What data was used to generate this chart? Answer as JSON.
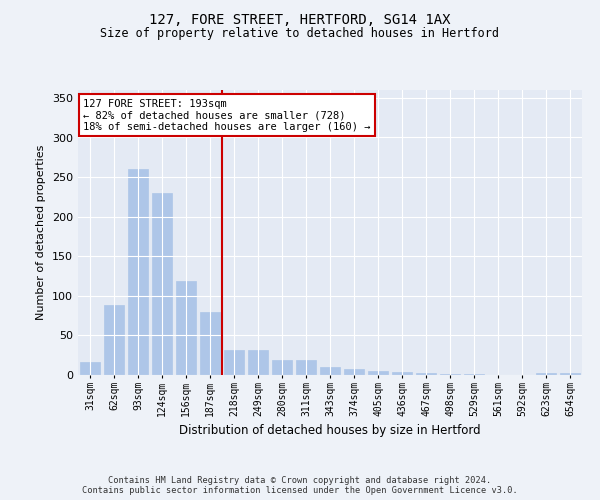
{
  "title": "127, FORE STREET, HERTFORD, SG14 1AX",
  "subtitle": "Size of property relative to detached houses in Hertford",
  "xlabel": "Distribution of detached houses by size in Hertford",
  "ylabel": "Number of detached properties",
  "categories": [
    "31sqm",
    "62sqm",
    "93sqm",
    "124sqm",
    "156sqm",
    "187sqm",
    "218sqm",
    "249sqm",
    "280sqm",
    "311sqm",
    "343sqm",
    "374sqm",
    "405sqm",
    "436sqm",
    "467sqm",
    "498sqm",
    "529sqm",
    "561sqm",
    "592sqm",
    "623sqm",
    "654sqm"
  ],
  "values": [
    17,
    88,
    260,
    230,
    119,
    79,
    32,
    32,
    19,
    19,
    10,
    8,
    5,
    4,
    2,
    1,
    1,
    0,
    0,
    3,
    3
  ],
  "bar_color": "#aec6e8",
  "redline_x": 5,
  "annotation_title": "127 FORE STREET: 193sqm",
  "annotation_line1": "← 82% of detached houses are smaller (728)",
  "annotation_line2": "18% of semi-detached houses are larger (160) →",
  "annotation_box_color": "#ffffff",
  "annotation_border_color": "#cc0000",
  "redline_color": "#cc0000",
  "background_color": "#eef2f8",
  "plot_bg_color": "#e4eaf4",
  "grid_color": "#ffffff",
  "ylim": [
    0,
    360
  ],
  "yticks": [
    0,
    50,
    100,
    150,
    200,
    250,
    300,
    350
  ],
  "footer": "Contains HM Land Registry data © Crown copyright and database right 2024.\nContains public sector information licensed under the Open Government Licence v3.0."
}
